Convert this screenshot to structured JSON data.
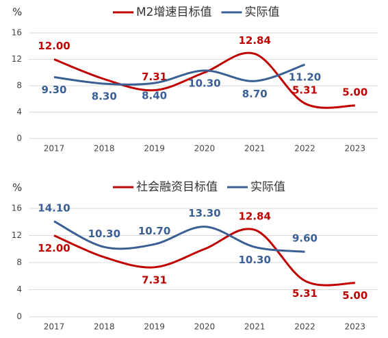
{
  "chart_data": [
    {
      "type": "line",
      "ylabel": "%",
      "categories": [
        "2017",
        "2018",
        "2019",
        "2020",
        "2021",
        "2022",
        "2023"
      ],
      "series": [
        {
          "name": "M2增速目标值",
          "color": "#c00000",
          "values": [
            12.0,
            9.0,
            7.31,
            10.0,
            12.84,
            5.31,
            5.0
          ],
          "value_labels": [
            "12.00",
            null,
            "7.31",
            null,
            "12.84",
            "5.31",
            "5.00"
          ]
        },
        {
          "name": "实际值",
          "color": "#3a5f94",
          "values": [
            9.3,
            8.3,
            8.4,
            10.3,
            8.7,
            11.2,
            null
          ],
          "value_labels": [
            "9.30",
            "8.30",
            "8.40",
            "10.30",
            "8.70",
            "11.20",
            null
          ]
        }
      ],
      "ylim": [
        0,
        16
      ],
      "yticks": [
        0,
        4,
        8,
        12,
        16
      ],
      "grid": true
    },
    {
      "type": "line",
      "ylabel": "%",
      "categories": [
        "2017",
        "2018",
        "2019",
        "2020",
        "2021",
        "2022",
        "2023"
      ],
      "series": [
        {
          "name": "社会融资目标值",
          "color": "#c00000",
          "values": [
            12.0,
            8.8,
            7.31,
            10.0,
            12.84,
            5.31,
            5.0
          ],
          "value_labels": [
            "12.00",
            null,
            "7.31",
            null,
            "12.84",
            "5.31",
            "5.00"
          ]
        },
        {
          "name": "实际值",
          "color": "#3a5f94",
          "values": [
            14.1,
            10.3,
            10.7,
            13.3,
            10.3,
            9.6,
            null
          ],
          "value_labels": [
            "14.10",
            "10.30",
            "10.70",
            "13.30",
            "10.30",
            "9.60",
            null
          ]
        }
      ],
      "ylim": [
        0,
        16
      ],
      "yticks": [
        0,
        4,
        8,
        12,
        16
      ],
      "grid": true
    }
  ]
}
